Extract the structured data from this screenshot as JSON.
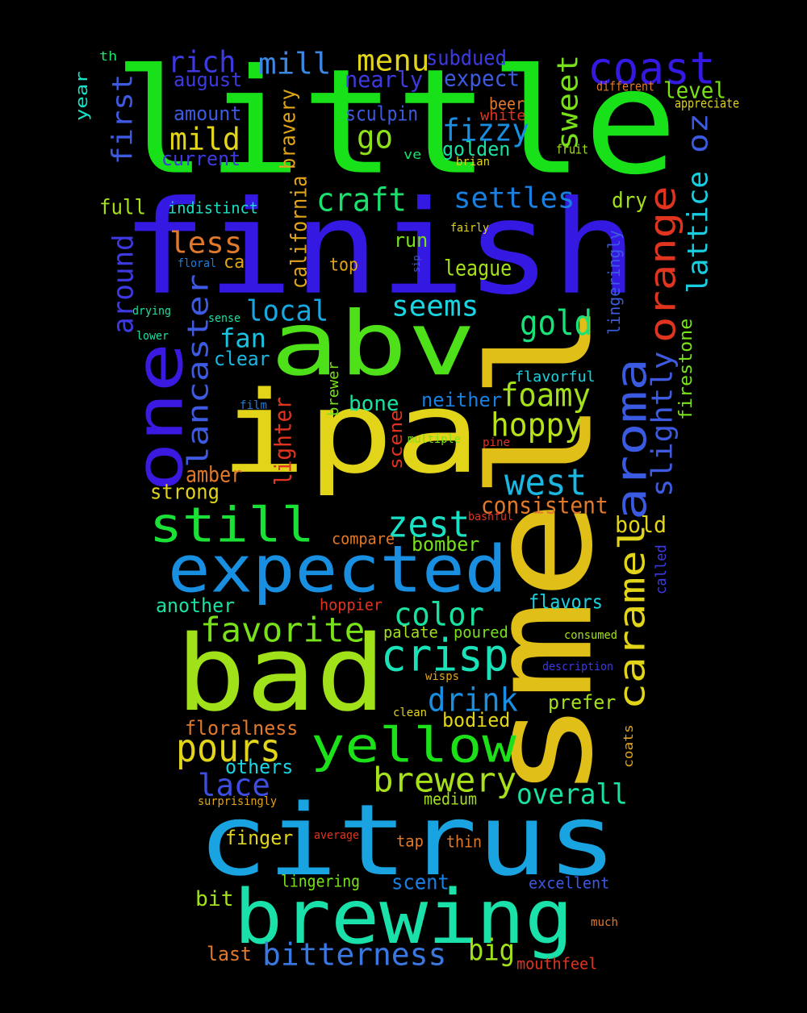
{
  "background": "#000000",
  "words": [
    {
      "text": "little",
      "color": "#19e119"
    },
    {
      "text": "finish",
      "color": "#3319e1"
    },
    {
      "text": "ipa",
      "color": "#e1d419"
    },
    {
      "text": "smell",
      "color": "#e1bf19"
    },
    {
      "text": "citrus",
      "color": "#19a3e1"
    },
    {
      "text": "bad",
      "color": "#a0e119"
    },
    {
      "text": "abv",
      "color": "#4ee119"
    },
    {
      "text": "brewing",
      "color": "#19e1a9"
    },
    {
      "text": "expected",
      "color": "#198fe1"
    },
    {
      "text": "one",
      "color": "#3b19e1"
    },
    {
      "text": "yellow",
      "color": "#1ce119"
    },
    {
      "text": "still",
      "color": "#19e136"
    },
    {
      "text": "aroma",
      "color": "#3a5ae1"
    },
    {
      "text": "caramel",
      "color": "#e1d419"
    },
    {
      "text": "coast",
      "color": "#3319e1"
    },
    {
      "text": "orange",
      "color": "#e1341f"
    },
    {
      "text": "favorite",
      "color": "#78e119"
    },
    {
      "text": "crisp",
      "color": "#19e1b8"
    },
    {
      "text": "brewery",
      "color": "#a7e119"
    },
    {
      "text": "pours",
      "color": "#e1d419"
    },
    {
      "text": "lancaster",
      "color": "#3d5ae1"
    },
    {
      "text": "zest",
      "color": "#19e1c5"
    },
    {
      "text": "color",
      "color": "#19e1a1"
    },
    {
      "text": "west",
      "color": "#19b7e1"
    },
    {
      "text": "hoppy",
      "color": "#b7e119"
    },
    {
      "text": "foamy",
      "color": "#a3e119"
    },
    {
      "text": "gold",
      "color": "#19e17a"
    },
    {
      "text": "drink",
      "color": "#198fe1"
    },
    {
      "text": "lace",
      "color": "#3d4ee1"
    },
    {
      "text": "overall",
      "color": "#19e1a3"
    },
    {
      "text": "bitterness",
      "color": "#3a78e1"
    },
    {
      "text": "craft",
      "color": "#19e16d"
    },
    {
      "text": "settles",
      "color": "#1980e1"
    },
    {
      "text": "fizzy",
      "color": "#198fe1"
    },
    {
      "text": "mild",
      "color": "#e1d419"
    },
    {
      "text": "rich",
      "color": "#3d3ae1"
    },
    {
      "text": "mill",
      "color": "#3d86e1"
    },
    {
      "text": "menu",
      "color": "#e1d419"
    },
    {
      "text": "less",
      "color": "#e1792a"
    },
    {
      "text": "seems",
      "color": "#19d4e1"
    },
    {
      "text": "local",
      "color": "#19a7e1"
    },
    {
      "text": "sweet",
      "color": "#78e119"
    },
    {
      "text": "lattice",
      "color": "#19cde1"
    },
    {
      "text": "oz",
      "color": "#3d5ae1"
    },
    {
      "text": "slightly",
      "color": "#3d5ae1"
    },
    {
      "text": "first",
      "color": "#3d5ae1"
    },
    {
      "text": "around",
      "color": "#3d3ae1"
    },
    {
      "text": "go",
      "color": "#8ee119"
    },
    {
      "text": "big",
      "color": "#a0e119"
    },
    {
      "text": "fan",
      "color": "#19c4e1"
    },
    {
      "text": "scent",
      "color": "#1980e1"
    },
    {
      "text": "subdued",
      "color": "#3d3ae1"
    },
    {
      "text": "nearly",
      "color": "#3d3ae1"
    },
    {
      "text": "expect",
      "color": "#3d5ae1"
    },
    {
      "text": "august",
      "color": "#3d3ae1"
    },
    {
      "text": "amount",
      "color": "#3d5ae1"
    },
    {
      "text": "current",
      "color": "#3d3ae1"
    },
    {
      "text": "sculpin",
      "color": "#3d5ae1"
    },
    {
      "text": "golden",
      "color": "#19e1a3"
    },
    {
      "text": "level",
      "color": "#78e119"
    },
    {
      "text": "beer",
      "color": "#e1792a"
    },
    {
      "text": "bravery",
      "color": "#e1a519"
    },
    {
      "text": "california",
      "color": "#e1a519"
    },
    {
      "text": "full",
      "color": "#a3e119"
    },
    {
      "text": "indistinct",
      "color": "#19e1c5"
    },
    {
      "text": "dry",
      "color": "#a3e119"
    },
    {
      "text": "run",
      "color": "#78e119"
    },
    {
      "text": "league",
      "color": "#a3e119"
    },
    {
      "text": "top",
      "color": "#e1a519"
    },
    {
      "text": "ca",
      "color": "#e1a519"
    },
    {
      "text": "clear",
      "color": "#19b7e1"
    },
    {
      "text": "bone",
      "color": "#19e1a3"
    },
    {
      "text": "neither",
      "color": "#1980e1"
    },
    {
      "text": "amber",
      "color": "#e1792a"
    },
    {
      "text": "strong",
      "color": "#e1d419"
    },
    {
      "text": "lighter",
      "color": "#e1341f"
    },
    {
      "text": "scene",
      "color": "#e1341f"
    },
    {
      "text": "brewer",
      "color": "#78e119"
    },
    {
      "text": "consistent",
      "color": "#e1792a"
    },
    {
      "text": "bold",
      "color": "#e1d419"
    },
    {
      "text": "bomber",
      "color": "#78e119"
    },
    {
      "text": "compare",
      "color": "#e1792a"
    },
    {
      "text": "another",
      "color": "#19e1a3"
    },
    {
      "text": "hoppier",
      "color": "#e1341f"
    },
    {
      "text": "flavors",
      "color": "#19d4e1"
    },
    {
      "text": "palate",
      "color": "#a3e119"
    },
    {
      "text": "poured",
      "color": "#78e119"
    },
    {
      "text": "prefer",
      "color": "#a3e119"
    },
    {
      "text": "bodied",
      "color": "#e1d419"
    },
    {
      "text": "floralness",
      "color": "#e1792a"
    },
    {
      "text": "others",
      "color": "#19d4e1"
    },
    {
      "text": "medium",
      "color": "#a3e119"
    },
    {
      "text": "finger",
      "color": "#e1d419"
    },
    {
      "text": "tap",
      "color": "#e1792a"
    },
    {
      "text": "thin",
      "color": "#e1792a"
    },
    {
      "text": "lingering",
      "color": "#78e119"
    },
    {
      "text": "excellent",
      "color": "#3d5ae1"
    },
    {
      "text": "bit",
      "color": "#a3e119"
    },
    {
      "text": "last",
      "color": "#e1792a"
    },
    {
      "text": "mouthfeel",
      "color": "#e1341f"
    },
    {
      "text": "firestone",
      "color": "#78e119"
    },
    {
      "text": "lingeringly",
      "color": "#3d5ae1"
    },
    {
      "text": "called",
      "color": "#3d3ae1"
    },
    {
      "text": "coats",
      "color": "#e1a519"
    },
    {
      "text": "year",
      "color": "#19e1c5"
    },
    {
      "text": "th",
      "color": "#19e16d"
    },
    {
      "text": "different",
      "color": "#e1792a"
    },
    {
      "text": "appreciate",
      "color": "#e1d419"
    },
    {
      "text": "fruit",
      "color": "#a3e119"
    },
    {
      "text": "brian",
      "color": "#e1d419"
    },
    {
      "text": "ve",
      "color": "#19e16d"
    },
    {
      "text": "fairly",
      "color": "#e1d419"
    },
    {
      "text": "floral",
      "color": "#1980e1"
    },
    {
      "text": "sip",
      "color": "#3d5ae1"
    },
    {
      "text": "drying",
      "color": "#19e1a3"
    },
    {
      "text": "sense",
      "color": "#19e1a3"
    },
    {
      "text": "lower",
      "color": "#19e1a3"
    },
    {
      "text": "film",
      "color": "#1980e1"
    },
    {
      "text": "flavorful",
      "color": "#19d4e1"
    },
    {
      "text": "multiple",
      "color": "#78e119"
    },
    {
      "text": "pine",
      "color": "#e1341f"
    },
    {
      "text": "white",
      "color": "#e1341f"
    },
    {
      "text": "bashful",
      "color": "#e1341f"
    },
    {
      "text": "consumed",
      "color": "#a3e119"
    },
    {
      "text": "description",
      "color": "#3d3ae1"
    },
    {
      "text": "wisps",
      "color": "#e1a519"
    },
    {
      "text": "clean",
      "color": "#e1d419"
    },
    {
      "text": "surprisingly",
      "color": "#e1a519"
    },
    {
      "text": "average",
      "color": "#e1341f"
    },
    {
      "text": "much",
      "color": "#e1792a"
    }
  ]
}
